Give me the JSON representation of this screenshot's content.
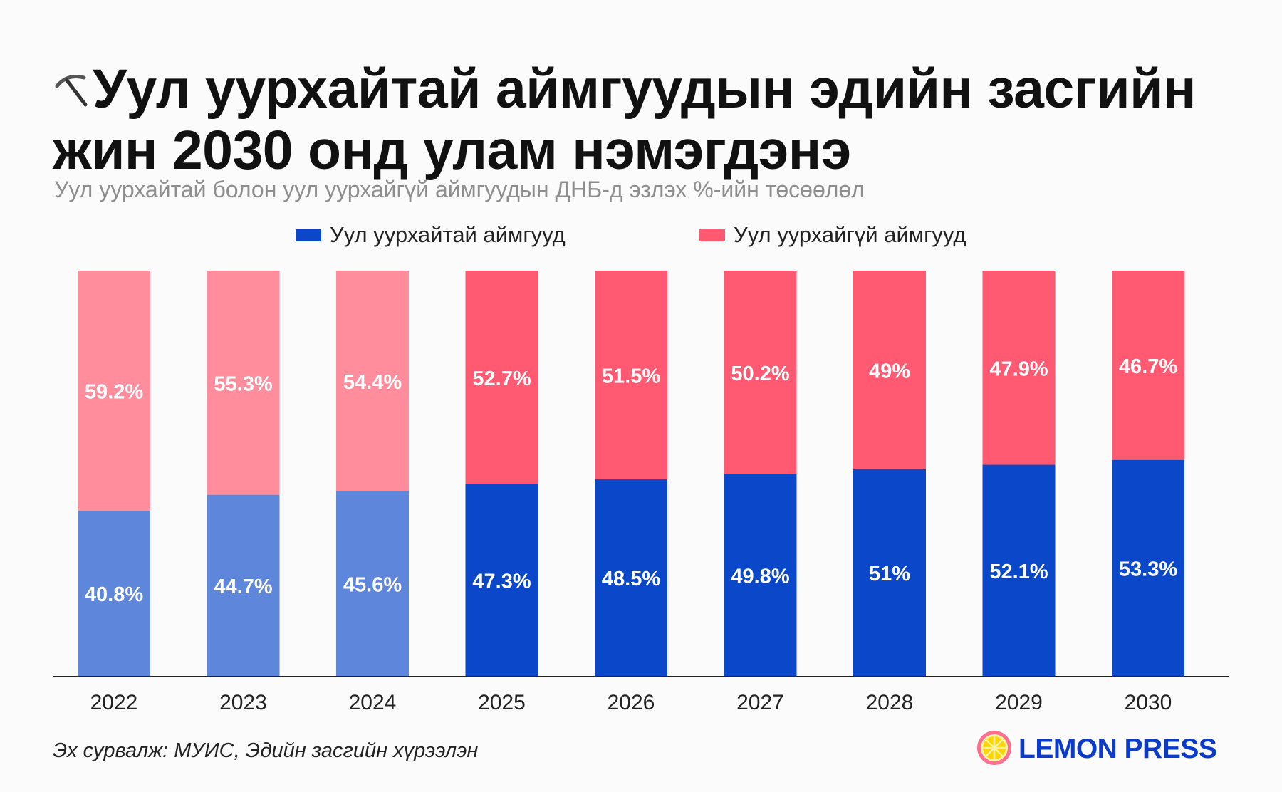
{
  "title": "Уул уурхайтай аймгуудын эдийн засгийн жин 2030 онд улам нэмэгдэнэ",
  "title_icon": "pickaxe-icon",
  "subtitle": "Уул уурхайтай болон уул уурхайгүй аймгуудын ДНБ-д эзлэх %-ийн төсөөлөл",
  "legend": {
    "position": "top-center",
    "items": [
      {
        "label": "Уул уурхайтай аймгууд",
        "color": "#0b47c9"
      },
      {
        "label": "Уул уурхайгүй аймгууд",
        "color": "#ff5a71"
      }
    ]
  },
  "colors": {
    "mining_actual": "#5e87dc",
    "mining_projected": "#0b47c9",
    "nonmining_actual": "#ff8d9c",
    "nonmining_projected": "#ff5a71",
    "label_text": "#ffffff",
    "axis": "#222222"
  },
  "chart_data": {
    "type": "bar",
    "stacked": true,
    "categories": [
      "2022",
      "2023",
      "2024",
      "2025",
      "2026",
      "2027",
      "2028",
      "2029",
      "2030"
    ],
    "series": [
      {
        "name": "Уул уурхайтай аймгууд",
        "values": [
          40.8,
          44.7,
          45.6,
          47.3,
          48.5,
          49.8,
          51,
          52.1,
          53.3
        ],
        "labels": [
          "40.8%",
          "44.7%",
          "45.6%",
          "47.3%",
          "48.5%",
          "49.8%",
          "51%",
          "52.1%",
          "53.3%"
        ]
      },
      {
        "name": "Уул уурхайгүй аймгууд",
        "values": [
          59.2,
          55.3,
          54.4,
          52.7,
          51.5,
          50.2,
          49,
          47.9,
          46.7
        ],
        "labels": [
          "59.2%",
          "55.3%",
          "54.4%",
          "52.7%",
          "51.5%",
          "50.2%",
          "49%",
          "47.9%",
          "46.7%"
        ]
      }
    ],
    "lighter_shade_categories": [
      "2022",
      "2023",
      "2024"
    ],
    "ylim": [
      0,
      100
    ],
    "grid": false
  },
  "source": "Эх сурвалж: МУИС, Эдийн засгийн хүрээлэн",
  "logo": {
    "text": "LEMON PRESS",
    "icon": "lemon-slice-icon"
  }
}
